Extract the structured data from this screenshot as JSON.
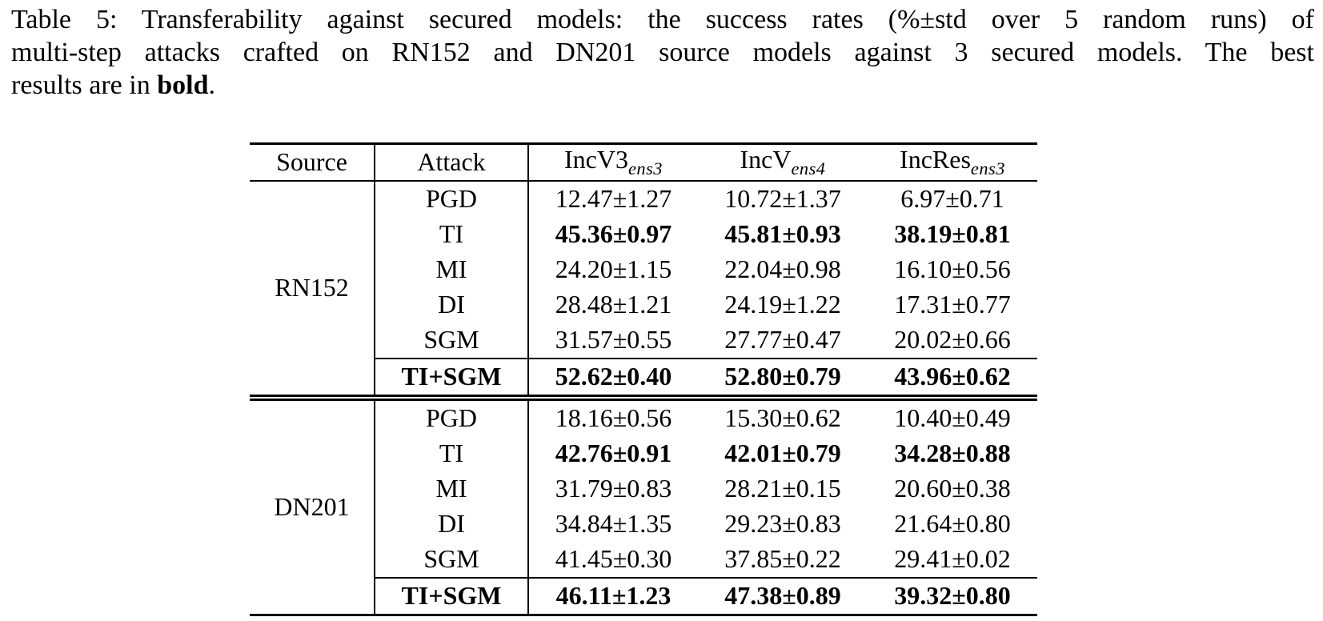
{
  "colors": {
    "text": "#000000",
    "background": "#ffffff",
    "rules": "#000000"
  },
  "caption": {
    "line1": "Table 5: Transferability against secured models: the success rates (%±std over 5 random runs) of",
    "line2": "multi-step attacks crafted on RN152 and DN201 source models against 3 secured models. The best",
    "line3_before": "results are in ",
    "line3_bold": "bold",
    "line3_after": "."
  },
  "table": {
    "col_headers": {
      "source": "Source",
      "attack": "Attack",
      "models": [
        {
          "name": "IncV3",
          "sub": "ens3"
        },
        {
          "name": "IncV",
          "sub": "ens4"
        },
        {
          "name": "IncRes",
          "sub": "ens3"
        }
      ]
    },
    "groups": [
      {
        "source": "RN152",
        "rows": [
          {
            "attack": "PGD",
            "values": [
              "12.47±1.27",
              "10.72±1.37",
              "6.97±0.71"
            ]
          },
          {
            "attack": "TI",
            "values": [
              "45.36±0.97",
              "45.81±0.93",
              "38.19±0.81"
            ]
          },
          {
            "attack": "MI",
            "values": [
              "24.20±1.15",
              "22.04±0.98",
              "16.10±0.56"
            ]
          },
          {
            "attack": "DI",
            "values": [
              "28.48±1.21",
              "24.19±1.22",
              "17.31±0.77"
            ]
          },
          {
            "attack": "SGM",
            "values": [
              "31.57±0.55",
              "27.77±0.47",
              "20.02±0.66"
            ]
          },
          {
            "attack": "TI+SGM",
            "values": [
              "52.62±0.40",
              "52.80±0.79",
              "43.96±0.62"
            ]
          }
        ]
      },
      {
        "source": "DN201",
        "rows": [
          {
            "attack": "PGD",
            "values": [
              "18.16±0.56",
              "15.30±0.62",
              "10.40±0.49"
            ]
          },
          {
            "attack": "TI",
            "values": [
              "42.76±0.91",
              "42.01±0.79",
              "34.28±0.88"
            ]
          },
          {
            "attack": "MI",
            "values": [
              "31.79±0.83",
              "28.21±0.15",
              "20.60±0.38"
            ]
          },
          {
            "attack": "DI",
            "values": [
              "34.84±1.35",
              "29.23±0.83",
              "21.64±0.80"
            ]
          },
          {
            "attack": "SGM",
            "values": [
              "41.45±0.30",
              "37.85±0.22",
              "29.41±0.02"
            ]
          },
          {
            "attack": "TI+SGM",
            "values": [
              "46.11±1.23",
              "47.38±0.89",
              "39.32±0.80"
            ]
          }
        ]
      }
    ]
  }
}
